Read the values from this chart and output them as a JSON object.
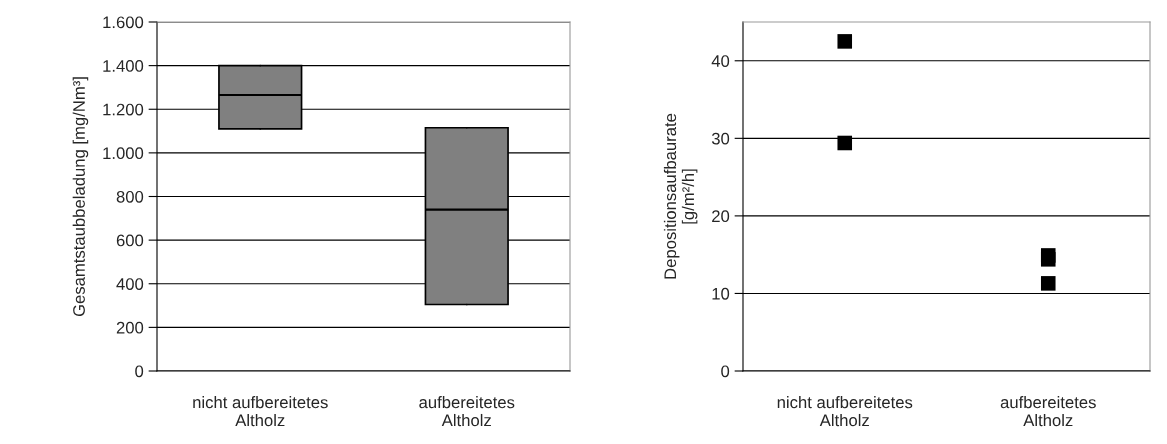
{
  "chart_data": [
    {
      "type": "box",
      "ylabel": "Gesamtstaubbeladung [mg/Nm³]",
      "categories": [
        "nicht aufbereitetes\nAltholz",
        "aufbereitetes\nAltholz"
      ],
      "boxes": [
        {
          "low": 1110,
          "q1": 1110,
          "median": 1265,
          "q3": 1400,
          "high": 1400
        },
        {
          "low": 305,
          "q1": 305,
          "median": 740,
          "q3": 1115,
          "high": 1115
        }
      ],
      "color": "#808080",
      "ylim": [
        0,
        1600
      ],
      "yticks": [
        0,
        200,
        400,
        600,
        800,
        {
          "value": 1000,
          "label": "1.000"
        },
        {
          "value": 1200,
          "label": "1.200"
        },
        {
          "value": 1400,
          "label": "1.400"
        },
        {
          "value": 1600,
          "label": "1.600"
        }
      ],
      "grid": "y"
    },
    {
      "type": "scatter",
      "ylabel": "Depositionsaufbaurate\n[g/m²/h]",
      "categories": [
        "nicht aufbereitetes\nAltholz",
        "aufbereitetes\nAltholz"
      ],
      "series": [
        {
          "color": "#000000",
          "x": [
            "nicht aufbereitetes\nAltholz",
            "nicht aufbereitetes\nAltholz",
            "aufbereitetes\nAltholz",
            "aufbereitetes\nAltholz",
            "aufbereitetes\nAltholz"
          ],
          "values": [
            42.5,
            29.4,
            14.9,
            14.4,
            11.3
          ]
        }
      ],
      "marker": "square",
      "ylim": [
        0,
        45
      ],
      "yticks": [
        0,
        10,
        20,
        30,
        40
      ],
      "grid": "y"
    }
  ]
}
